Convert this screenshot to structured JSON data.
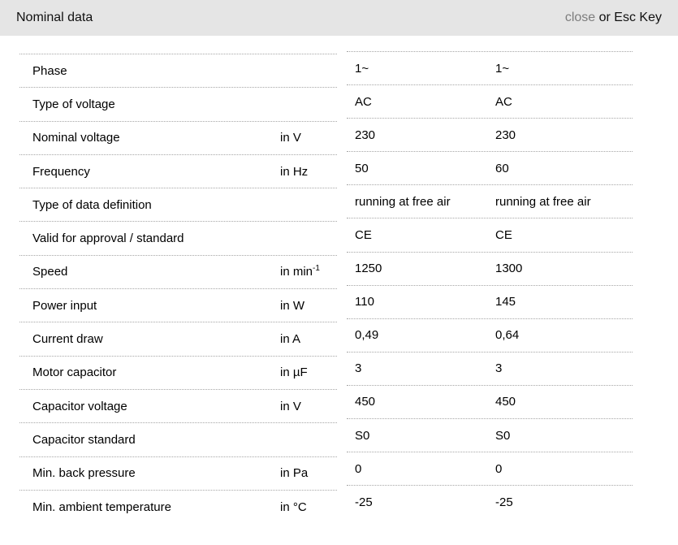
{
  "header": {
    "title": "Nominal data",
    "close_label": "close",
    "esc_hint": " or Esc Key"
  },
  "table": {
    "rows": [
      {
        "label": "Phase",
        "unit": "",
        "v1": "1~",
        "v2": "1~"
      },
      {
        "label": "Type of voltage",
        "unit": "",
        "v1": "AC",
        "v2": "AC"
      },
      {
        "label": "Nominal voltage",
        "unit": "in V",
        "v1": "230",
        "v2": "230"
      },
      {
        "label": "Frequency",
        "unit": "in Hz",
        "v1": "50",
        "v2": "60"
      },
      {
        "label": "Type of data definition",
        "unit": "",
        "v1": "running at free air",
        "v2": "running at free air"
      },
      {
        "label": "Valid for approval / standard",
        "unit": "",
        "v1": "CE",
        "v2": "CE"
      },
      {
        "label": "Speed",
        "unit": "in min^-1",
        "v1": "1250",
        "v2": "1300"
      },
      {
        "label": "Power input",
        "unit": "in W",
        "v1": "110",
        "v2": "145"
      },
      {
        "label": "Current draw",
        "unit": "in A",
        "v1": "0,49",
        "v2": "0,64"
      },
      {
        "label": "Motor capacitor",
        "unit": "in µF",
        "v1": "3",
        "v2": "3"
      },
      {
        "label": "Capacitor voltage",
        "unit": "in V",
        "v1": "450",
        "v2": "450"
      },
      {
        "label": "Capacitor standard",
        "unit": "",
        "v1": "S0",
        "v2": "S0"
      },
      {
        "label": "Min. back pressure",
        "unit": "in Pa",
        "v1": "0",
        "v2": "0"
      },
      {
        "label": "Min. ambient temperature",
        "unit": "in °C",
        "v1": "-25",
        "v2": "-25"
      }
    ]
  },
  "colors": {
    "header_bg": "#e5e5e5",
    "text": "#000000",
    "muted": "#7d7d7d",
    "divider": "#a6a6a6"
  }
}
